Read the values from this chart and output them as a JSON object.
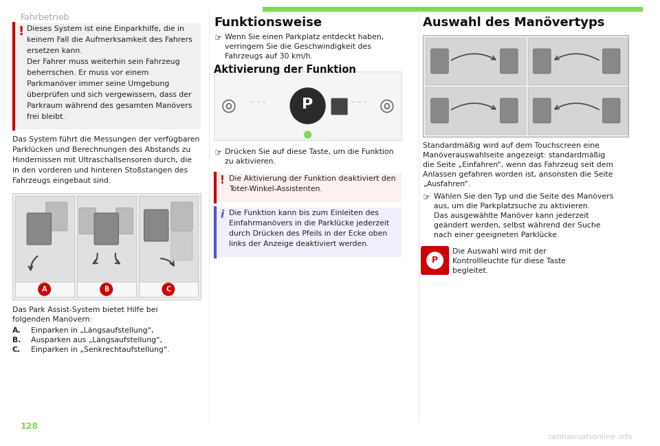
{
  "page_bg": "#ffffff",
  "header_text": "Fahrbetrieb",
  "header_color": "#aaaaaa",
  "header_bar_color": "#7ed957",
  "page_number": "128",
  "page_number_color": "#7ed957",
  "watermark": "carmanualsonline.info",
  "watermark_color": "#cccccc",
  "warning_text": [
    "Dieses System ist eine Einparkhilfe, die in",
    "keinem Fall die Aufmerksamkeit des Fahrers",
    "ersetzen kann.",
    "Der Fahrer muss weiterhin sein Fahrzeug",
    "beherrschen. Er muss vor einem",
    "Parkmanöver immer seine Umgebung",
    "überprüfen und sich vergewissern, dass der",
    "Parkraum während des gesamten Manövers",
    "frei bleibt."
  ],
  "body_text_1": [
    "Das System führt die Messungen der verfügbaren",
    "Parklücken und Berechnungen des Abstands zu",
    "Hindernissen mit Ultraschallsensoren durch, die",
    "in den vorderen und hinteren Stoßstangen des",
    "Fahrzeugs eingebaut sind."
  ],
  "list_intro": [
    "Das Park Assist-System bietet Hilfe bei",
    "folgenden Manövern:"
  ],
  "list_items": [
    {
      "label": "A.",
      "text": "Einparken in „Längsaufstellung“,"
    },
    {
      "label": "B.",
      "text": "Ausparken aus „Längsaufstellung“,"
    },
    {
      "label": "C.",
      "text": "Einparken in „Senkrechtaufstellung“."
    }
  ],
  "col2_title": "Funktionsweise",
  "col2_bullet1": [
    "Wenn Sie einen Parkplatz entdeckt haben,",
    "verringern Sie die Geschwindigkeit des",
    "Fahrzeugs auf 30 km/h."
  ],
  "col2_subtitle": "Aktivierung der Funktion",
  "col2_bullet2": [
    "Drücken Sie auf diese Taste, um die Funktion",
    "zu aktivieren."
  ],
  "col2_warning_text": [
    "Die Aktivierung der Funktion deaktiviert den",
    "Toter-Winkel-Assistenten."
  ],
  "col2_info_text": [
    "Die Funktion kann bis zum Einleiten des",
    "Einfahrmanövers in die Parklücke jederzeit",
    "durch Drücken des Pfeils in der Ecke oben",
    "links der Anzeige deaktiviert werden."
  ],
  "col3_title": "Auswahl des Manövertyps",
  "col3_text1": [
    "Standardmäßig wird auf dem Touchscreen eine",
    "Manöverauswahlseite angezeigt: standardmäßig",
    "die Seite „Einfahren“, wenn das Fahrzeug seit dem",
    "Anlassen gefahren worden ist, ansonsten die Seite",
    "„Ausfahren“."
  ],
  "col3_bullet": [
    "Wählen Sie den Typ und die Seite des Manövers",
    "aus, um die Parkplatzsuche zu aktivieren.",
    "Das ausgewählte Manöver kann jederzeit",
    "geändert werden, selbst während der Suche",
    "nach einer geeigneten Parklücke."
  ],
  "col3_icon_text": [
    "Die Auswahl wird mit der",
    "Kontrollleuchte für diese Taste",
    "begleitet."
  ]
}
